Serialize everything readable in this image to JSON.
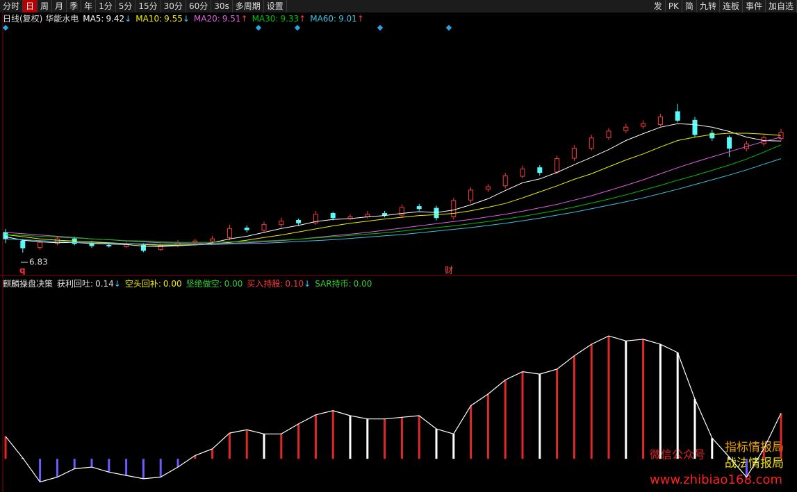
{
  "toolbar": {
    "left": [
      "分时",
      "日",
      "周",
      "月",
      "季",
      "年",
      "1分",
      "5分",
      "15分",
      "30分",
      "60分",
      "30s",
      "多周期",
      "设置"
    ],
    "active_index": 1,
    "right": [
      "发",
      "PK",
      "简",
      "九转",
      "连板",
      "事件",
      "加自选"
    ]
  },
  "chart_data": [
    {
      "type": "candlestick",
      "title": "日线(复权)",
      "subtitle": "华能水电",
      "open": [
        7.3,
        7.1,
        6.95,
        7.05,
        7.15,
        7.04,
        7.0,
        6.97,
        7.0,
        6.9,
        7.0,
        7.07,
        7.1,
        7.18,
        7.4,
        7.35,
        7.48,
        7.58,
        7.52,
        7.74,
        7.62,
        7.66,
        7.74,
        7.7,
        7.9,
        7.86,
        7.66,
        8.05,
        8.3,
        8.38,
        8.6,
        8.8,
        8.7,
        9.02,
        9.25,
        9.5,
        9.66,
        9.76,
        9.8,
        10.1,
        9.9,
        9.6,
        9.5,
        9.24,
        9.36,
        9.48
      ],
      "high": [
        7.38,
        7.15,
        7.12,
        7.2,
        7.2,
        7.1,
        7.06,
        7.08,
        7.05,
        7.04,
        7.12,
        7.15,
        7.22,
        7.48,
        7.46,
        7.55,
        7.64,
        7.62,
        7.8,
        7.78,
        7.72,
        7.8,
        7.8,
        7.95,
        7.96,
        7.92,
        8.1,
        8.35,
        8.42,
        8.68,
        8.85,
        8.86,
        9.08,
        9.32,
        9.56,
        9.72,
        9.82,
        9.9,
        10.05,
        10.28,
        9.98,
        9.68,
        9.55,
        9.42,
        9.56,
        9.7
      ],
      "low": [
        7.05,
        6.83,
        6.9,
        7.0,
        7.0,
        6.94,
        6.95,
        6.93,
        6.84,
        6.87,
        6.96,
        7.02,
        7.05,
        7.12,
        7.3,
        7.3,
        7.42,
        7.46,
        7.48,
        7.58,
        7.58,
        7.62,
        7.65,
        7.66,
        7.8,
        7.58,
        7.6,
        7.98,
        8.24,
        8.32,
        8.55,
        8.62,
        8.66,
        8.96,
        9.2,
        9.44,
        9.6,
        9.7,
        9.76,
        9.85,
        9.5,
        9.42,
        9.05,
        9.18,
        9.3,
        9.42
      ],
      "close": [
        7.15,
        6.94,
        7.07,
        7.15,
        7.04,
        6.99,
        6.99,
        7.02,
        6.88,
        6.99,
        7.07,
        7.1,
        7.15,
        7.39,
        7.36,
        7.48,
        7.56,
        7.52,
        7.72,
        7.64,
        7.66,
        7.72,
        7.7,
        7.88,
        7.85,
        7.64,
        8.04,
        8.28,
        8.36,
        8.61,
        8.77,
        8.69,
        9.01,
        9.25,
        9.49,
        9.65,
        9.74,
        9.82,
        9.98,
        9.9,
        9.57,
        9.49,
        9.25,
        9.35,
        9.5,
        9.62
      ],
      "up_color": "#ff3c3c",
      "down_color": "#54fcfc",
      "ylim": [
        6.3,
        12.4
      ],
      "min_label": 6.83,
      "markers": [
        "q",
        "财"
      ],
      "series": [
        {
          "name": "MA5:",
          "color": "#ffffff",
          "last": 9.42,
          "arrow": "↓",
          "values": [
            7.2,
            7.12,
            7.08,
            7.06,
            7.07,
            7.04,
            7.03,
            7.02,
            6.98,
            6.97,
            6.99,
            7.01,
            7.06,
            7.15,
            7.21,
            7.3,
            7.39,
            7.46,
            7.55,
            7.6,
            7.62,
            7.66,
            7.69,
            7.74,
            7.78,
            7.76,
            7.82,
            7.94,
            8.08,
            8.27,
            8.45,
            8.54,
            8.69,
            8.87,
            9.04,
            9.22,
            9.43,
            9.59,
            9.74,
            9.82,
            9.8,
            9.74,
            9.64,
            9.51,
            9.43,
            9.42
          ]
        },
        {
          "name": "MA10:",
          "color": "#f0f000",
          "last": 9.55,
          "arrow": "↓",
          "values": [
            7.25,
            7.2,
            7.15,
            7.12,
            7.1,
            7.08,
            7.06,
            7.04,
            7.02,
            7.0,
            7.0,
            7.01,
            7.03,
            7.07,
            7.12,
            7.18,
            7.24,
            7.31,
            7.38,
            7.45,
            7.51,
            7.56,
            7.61,
            7.65,
            7.69,
            7.71,
            7.74,
            7.8,
            7.88,
            7.97,
            8.1,
            8.24,
            8.38,
            8.53,
            8.66,
            8.82,
            8.98,
            9.12,
            9.28,
            9.43,
            9.51,
            9.57,
            9.6,
            9.6,
            9.58,
            9.55
          ]
        },
        {
          "name": "MA20:",
          "color": "#e060e0",
          "last": 9.51,
          "arrow": "↑",
          "values": [
            7.3,
            7.27,
            7.24,
            7.21,
            7.18,
            7.15,
            7.13,
            7.1,
            7.08,
            7.06,
            7.05,
            7.04,
            7.04,
            7.05,
            7.06,
            7.08,
            7.11,
            7.14,
            7.18,
            7.22,
            7.26,
            7.3,
            7.35,
            7.4,
            7.45,
            7.5,
            7.55,
            7.6,
            7.66,
            7.72,
            7.79,
            7.87,
            7.95,
            8.05,
            8.15,
            8.27,
            8.39,
            8.52,
            8.66,
            8.8,
            8.93,
            9.05,
            9.17,
            9.29,
            9.41,
            9.51
          ]
        },
        {
          "name": "MA30:",
          "color": "#00c000",
          "last": 9.33,
          "arrow": "↑",
          "values": [
            7.25,
            7.23,
            7.21,
            7.19,
            7.17,
            7.15,
            7.13,
            7.11,
            7.1,
            7.08,
            7.07,
            7.07,
            7.07,
            7.08,
            7.09,
            7.1,
            7.12,
            7.14,
            7.17,
            7.2,
            7.23,
            7.26,
            7.29,
            7.33,
            7.37,
            7.41,
            7.45,
            7.5,
            7.55,
            7.61,
            7.67,
            7.74,
            7.81,
            7.89,
            7.98,
            8.07,
            8.17,
            8.28,
            8.39,
            8.51,
            8.62,
            8.74,
            8.86,
            9.0,
            9.16,
            9.33
          ]
        },
        {
          "name": "MA60:",
          "color": "#40c0e0",
          "last": 9.01,
          "arrow": "↑",
          "values": [
            7.15,
            7.13,
            7.11,
            7.09,
            7.07,
            7.06,
            7.05,
            7.04,
            7.03,
            7.02,
            7.02,
            7.02,
            7.02,
            7.03,
            7.04,
            7.05,
            7.07,
            7.09,
            7.11,
            7.13,
            7.16,
            7.19,
            7.22,
            7.25,
            7.29,
            7.33,
            7.37,
            7.41,
            7.46,
            7.51,
            7.57,
            7.63,
            7.7,
            7.77,
            7.85,
            7.93,
            8.01,
            8.1,
            8.2,
            8.3,
            8.41,
            8.52,
            8.63,
            8.75,
            8.88,
            9.01
          ]
        }
      ]
    },
    {
      "type": "histogram-line",
      "title": "麒麟操盘决策",
      "items": [
        {
          "name": "获利回吐:",
          "value": 0.14,
          "value_label": "0.14",
          "arrow": "↓",
          "color": "#e0e0e0"
        },
        {
          "name": "空头回补:",
          "value": 0,
          "value_label": "0.00",
          "arrow": "",
          "color": "#f0f000"
        },
        {
          "name": "坚绝做空:",
          "value": 0,
          "value_label": "0.00",
          "arrow": "",
          "color": "#30d030"
        },
        {
          "name": "买入持股:",
          "value": 0.1,
          "value_label": "0.10",
          "arrow": "↓",
          "color": "#ff3c3c"
        },
        {
          "name": "SAR持币:",
          "value": 0,
          "value_label": "0.00",
          "arrow": "",
          "color": "#30d030"
        }
      ],
      "values": [
        0.27,
        0.01,
        -0.28,
        -0.22,
        -0.12,
        -0.1,
        -0.16,
        -0.2,
        -0.24,
        -0.22,
        -0.1,
        0.04,
        0.12,
        0.31,
        0.35,
        0.3,
        0.3,
        0.42,
        0.53,
        0.58,
        0.52,
        0.48,
        0.48,
        0.5,
        0.52,
        0.36,
        0.3,
        0.64,
        0.78,
        0.95,
        1.05,
        1.02,
        1.08,
        1.24,
        1.38,
        1.48,
        1.42,
        1.44,
        1.38,
        1.28,
        0.72,
        0.25,
        0.02,
        -0.22,
        0.12,
        0.55
      ],
      "line_color": "#ffffff",
      "rise_color": "#e02828",
      "fall_color": "#ffffff",
      "negative_color": "#6a5cff",
      "ylim": [
        -0.4,
        2.2
      ]
    }
  ],
  "watermark": {
    "label": "微信公众号",
    "line1": "指标情报局",
    "line2": "战法情报局",
    "url": "www.zhibiao168.com"
  }
}
